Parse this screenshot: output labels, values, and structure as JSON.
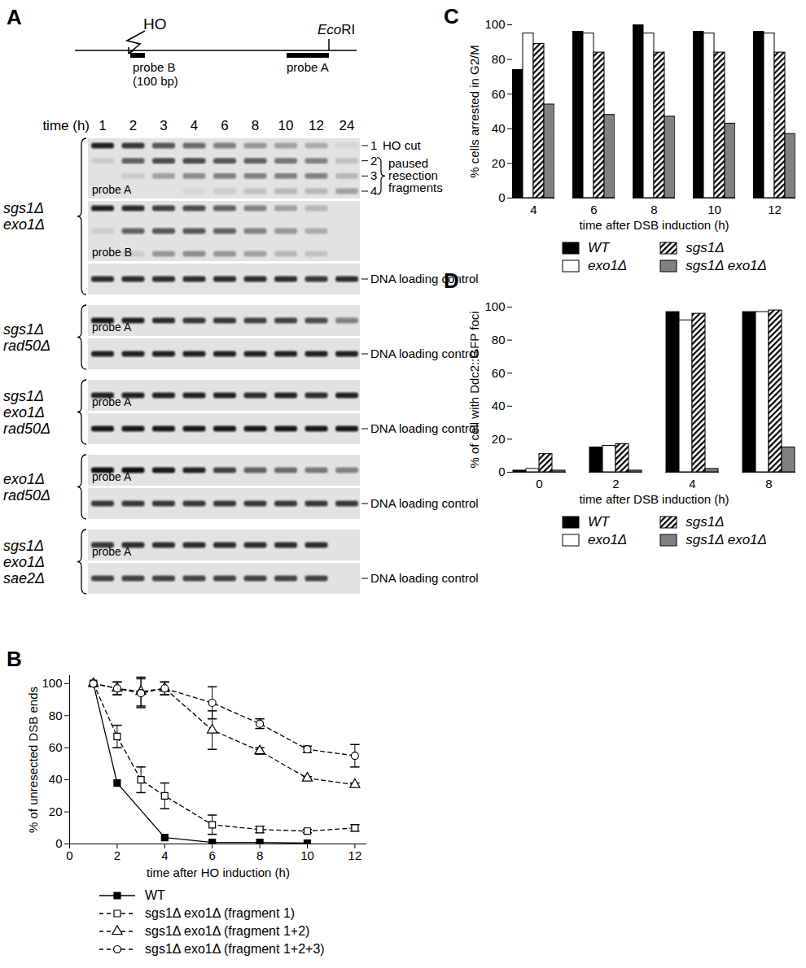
{
  "chart_data": [
    {
      "panel": "A",
      "type": "gel",
      "map": {
        "site": "HO",
        "enzyme": "EcoRI",
        "probes": [
          "probe B",
          "probe A"
        ],
        "probe_note": "(100 bp)"
      },
      "time_label": "time (h)",
      "times": [
        1,
        2,
        3,
        4,
        6,
        8,
        10,
        12,
        24
      ],
      "blots": [
        {
          "strain": [
            "sgs1Δ",
            "exo1Δ"
          ],
          "panels": [
            {
              "probe": "probe A",
              "bands": [
                {
                  "label": "1",
                  "name": "HO cut",
                  "intensity": [
                    0.9,
                    0.8,
                    0.65,
                    0.55,
                    0.45,
                    0.35,
                    0.3,
                    0.25,
                    0.05
                  ]
                },
                {
                  "label": "2",
                  "intensity": [
                    0.1,
                    0.6,
                    0.7,
                    0.7,
                    0.65,
                    0.6,
                    0.5,
                    0.45,
                    0.15
                  ]
                },
                {
                  "label": "3",
                  "intensity": [
                    0,
                    0.1,
                    0.3,
                    0.4,
                    0.45,
                    0.45,
                    0.45,
                    0.45,
                    0.2
                  ]
                },
                {
                  "label": "4",
                  "intensity": [
                    0,
                    0,
                    0,
                    0.05,
                    0.1,
                    0.15,
                    0.2,
                    0.2,
                    0.3
                  ]
                }
              ],
              "bracket": [
                "paused",
                "resection",
                "fragments"
              ]
            },
            {
              "probe": "probe B",
              "bands": [
                {
                  "intensity": [
                    0.9,
                    0.85,
                    0.75,
                    0.7,
                    0.6,
                    0.45,
                    0.3,
                    0.2,
                    0
                  ]
                },
                {
                  "intensity": [
                    0.1,
                    0.6,
                    0.65,
                    0.65,
                    0.6,
                    0.45,
                    0.35,
                    0.25,
                    0
                  ]
                },
                {
                  "intensity": [
                    0,
                    0.1,
                    0.35,
                    0.4,
                    0.35,
                    0.3,
                    0.2,
                    0.15,
                    0
                  ]
                }
              ]
            },
            {
              "name": "DNA loading control",
              "bands": [
                {
                  "intensity": [
                    0.85,
                    0.85,
                    0.85,
                    0.85,
                    0.85,
                    0.85,
                    0.85,
                    0.8,
                    0.85
                  ]
                }
              ]
            }
          ]
        },
        {
          "strain": [
            "sgs1Δ",
            "rad50Δ"
          ],
          "panels": [
            {
              "probe": "probe A",
              "bands": [
                {
                  "intensity": [
                    0.95,
                    0.9,
                    0.85,
                    0.8,
                    0.8,
                    0.75,
                    0.75,
                    0.7,
                    0.45
                  ]
                }
              ]
            },
            {
              "name": "DNA loading control",
              "bands": [
                {
                  "intensity": [
                    0.9,
                    0.9,
                    0.9,
                    0.9,
                    0.9,
                    0.9,
                    0.9,
                    0.9,
                    0.9
                  ]
                }
              ]
            }
          ]
        },
        {
          "strain": [
            "sgs1Δ",
            "exo1Δ",
            "rad50Δ"
          ],
          "panels": [
            {
              "probe": "probe A",
              "bands": [
                {
                  "intensity": [
                    0.9,
                    0.9,
                    0.9,
                    0.9,
                    0.9,
                    0.85,
                    0.9,
                    0.85,
                    0.9
                  ]
                }
              ]
            },
            {
              "name": "DNA loading control",
              "bands": [
                {
                  "intensity": [
                    0.95,
                    0.95,
                    0.95,
                    0.95,
                    0.95,
                    0.95,
                    0.95,
                    0.95,
                    0.95
                  ]
                }
              ]
            }
          ]
        },
        {
          "strain": [
            "exo1Δ",
            "rad50Δ"
          ],
          "panels": [
            {
              "probe": "probe A",
              "bands": [
                {
                  "intensity": [
                    1,
                    1,
                    0.95,
                    0.9,
                    0.75,
                    0.6,
                    0.55,
                    0.5,
                    0.45
                  ]
                }
              ]
            },
            {
              "name": "DNA loading control",
              "bands": [
                {
                  "intensity": [
                    0.8,
                    0.8,
                    0.8,
                    0.8,
                    0.8,
                    0.8,
                    0.8,
                    0.8,
                    0.8
                  ]
                }
              ]
            }
          ]
        },
        {
          "strain": [
            "sgs1Δ",
            "exo1Δ",
            "sae2Δ"
          ],
          "panels": [
            {
              "probe": "probe A",
              "bands": [
                {
                  "intensity": [
                    0.8,
                    0.85,
                    0.85,
                    0.85,
                    0.85,
                    0.85,
                    0.85,
                    0.85,
                    null
                  ]
                }
              ]
            },
            {
              "name": "DNA loading control",
              "bands": [
                {
                  "intensity": [
                    0.75,
                    0.75,
                    0.75,
                    0.75,
                    0.75,
                    0.75,
                    0.75,
                    0.75,
                    null
                  ]
                }
              ]
            }
          ]
        }
      ]
    },
    {
      "panel": "B",
      "type": "line",
      "x_label": "time after HO induction (h)",
      "y_label": "% of unresected DSB ends",
      "xlim": [
        0,
        12.5
      ],
      "ylim": [
        0,
        105
      ],
      "xticks": [
        0,
        2,
        4,
        6,
        8,
        10,
        12
      ],
      "yticks": [
        0,
        20,
        40,
        60,
        80,
        100
      ],
      "legend": "bottom",
      "series": [
        {
          "name": "WT",
          "x": [
            1,
            2,
            4,
            6,
            8,
            10
          ],
          "values": [
            100,
            38,
            4,
            1,
            1,
            0.5
          ],
          "color": "#000000",
          "marker": "filled_square",
          "line_style": "solid"
        },
        {
          "name": "sgs1Δ exo1Δ (fragment 1)",
          "x": [
            1,
            2,
            3,
            4,
            6,
            8,
            10,
            12
          ],
          "values": [
            100,
            67,
            40,
            30,
            12,
            9,
            8,
            10
          ],
          "errors": [
            null,
            7,
            8,
            8,
            6,
            2,
            1,
            2
          ],
          "color": "#000000",
          "marker": "open_square",
          "line_style": "dashed"
        },
        {
          "name": "sgs1Δ exo1Δ (fragment 1+2)",
          "x": [
            1,
            2,
            3,
            4,
            6,
            8,
            10,
            12
          ],
          "values": [
            100,
            97,
            95,
            97,
            71,
            58,
            41,
            37
          ],
          "errors": [
            null,
            4,
            9,
            4,
            12,
            2,
            1,
            1
          ],
          "color": "#000000",
          "marker": "open_triangle",
          "line_style": "dashed"
        },
        {
          "name": "sgs1Δ exo1Δ (fragment 1+2+3)",
          "x": [
            1,
            2,
            3,
            4,
            6,
            8,
            10,
            12
          ],
          "values": [
            100,
            97,
            94,
            97,
            88,
            75,
            59,
            55
          ],
          "errors": [
            null,
            4,
            9,
            4,
            10,
            3,
            2,
            7
          ],
          "color": "#000000",
          "marker": "open_circle",
          "line_style": "dashed"
        }
      ]
    },
    {
      "panel": "C",
      "type": "bar",
      "x_label": "time after DSB induction (h)",
      "y_label": "% cells arrested in G2/M",
      "categories": [
        4,
        6,
        8,
        10,
        12
      ],
      "ylim": [
        0,
        100
      ],
      "yticks": [
        0,
        20,
        40,
        60,
        80,
        100
      ],
      "legend": "bottom",
      "series": [
        {
          "name": "WT",
          "color": "#000000",
          "values": [
            74,
            96,
            100,
            96,
            96
          ]
        },
        {
          "name": "exo1Δ",
          "color": "#ffffff",
          "values": [
            95,
            95,
            95,
            95,
            95
          ]
        },
        {
          "name": "sgs1Δ",
          "color": "hatched",
          "values": [
            89,
            84,
            84,
            84,
            84
          ]
        },
        {
          "name": "sgs1Δ exo1Δ",
          "color": "#808080",
          "values": [
            54,
            48,
            47,
            43,
            37
          ]
        }
      ]
    },
    {
      "panel": "D",
      "type": "bar",
      "x_label": "time after DSB induction (h)",
      "y_label": "% of cell with Ddc2::GFP foci",
      "categories": [
        0,
        2,
        4,
        8
      ],
      "ylim": [
        0,
        100
      ],
      "yticks": [
        0,
        20,
        40,
        60,
        80,
        100
      ],
      "legend": "bottom",
      "series": [
        {
          "name": "WT",
          "color": "#000000",
          "values": [
            1,
            15,
            97,
            97
          ]
        },
        {
          "name": "exo1Δ",
          "color": "#ffffff",
          "values": [
            2,
            16,
            92,
            97
          ]
        },
        {
          "name": "sgs1Δ",
          "color": "hatched",
          "values": [
            11,
            17,
            96,
            98
          ]
        },
        {
          "name": "sgs1Δ exo1Δ",
          "color": "#808080",
          "values": [
            1,
            1,
            2,
            15
          ]
        }
      ]
    }
  ]
}
